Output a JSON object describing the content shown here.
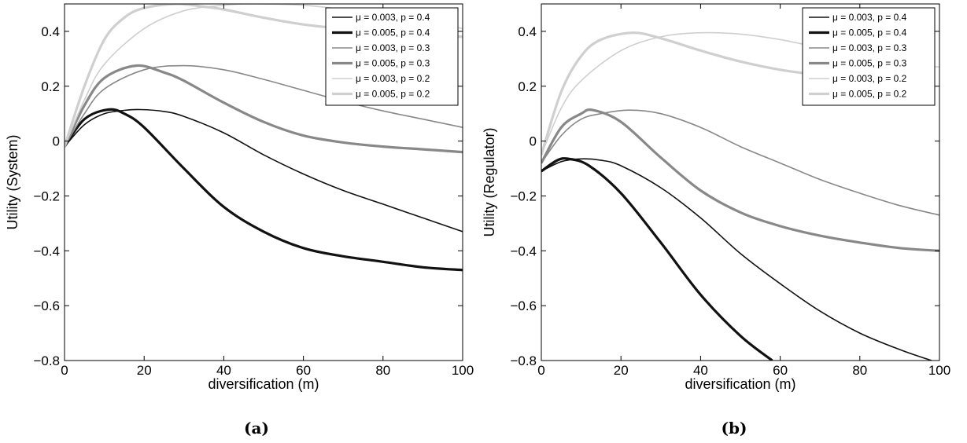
{
  "chart_data": [
    {
      "type": "line",
      "caption": "(a)",
      "xlabel": "diversification (m)",
      "ylabel": "Utility (System)",
      "xlim": [
        0,
        100
      ],
      "ylim": [
        -0.8,
        0.5
      ],
      "xticks": [
        "0",
        "20",
        "40",
        "60",
        "80",
        "100"
      ],
      "yticks": [
        "0.4",
        "0.2",
        "0",
        "−0.2",
        "−0.4",
        "−0.6",
        "−0.8"
      ],
      "legend_position": "top-right",
      "series": [
        {
          "name": "μ = 0.003, p = 0.4",
          "color": "#111111",
          "width": 1.6,
          "x": [
            0,
            5,
            10,
            15,
            19,
            25,
            30,
            40,
            50,
            60,
            70,
            80,
            90,
            100
          ],
          "y": [
            -0.02,
            0.06,
            0.1,
            0.112,
            0.115,
            0.108,
            0.09,
            0.03,
            -0.05,
            -0.12,
            -0.18,
            -0.23,
            -0.28,
            -0.33
          ]
        },
        {
          "name": "μ = 0.005, p = 0.4",
          "color": "#111111",
          "width": 3.2,
          "x": [
            0,
            5,
            11,
            15,
            20,
            30,
            40,
            50,
            60,
            70,
            80,
            90,
            100
          ],
          "y": [
            -0.02,
            0.08,
            0.115,
            0.1,
            0.05,
            -0.1,
            -0.24,
            -0.33,
            -0.39,
            -0.42,
            -0.44,
            -0.46,
            -0.47
          ]
        },
        {
          "name": "μ = 0.003, p = 0.3",
          "color": "#888888",
          "width": 1.6,
          "x": [
            0,
            5,
            10,
            20,
            30,
            40,
            50,
            60,
            70,
            80,
            90,
            100
          ],
          "y": [
            -0.02,
            0.1,
            0.19,
            0.26,
            0.275,
            0.26,
            0.225,
            0.185,
            0.145,
            0.11,
            0.08,
            0.05
          ]
        },
        {
          "name": "μ = 0.005, p = 0.3",
          "color": "#888888",
          "width": 3.2,
          "x": [
            0,
            5,
            10,
            18,
            25,
            30,
            40,
            50,
            60,
            70,
            80,
            90,
            100
          ],
          "y": [
            -0.02,
            0.13,
            0.23,
            0.275,
            0.25,
            0.22,
            0.14,
            0.07,
            0.02,
            -0.005,
            -0.02,
            -0.03,
            -0.04
          ]
        },
        {
          "name": "μ = 0.003, p = 0.2",
          "color": "#cfcfcf",
          "width": 1.6,
          "x": [
            0,
            5,
            10,
            20,
            30,
            40,
            47,
            60,
            70,
            80,
            90,
            100
          ],
          "y": [
            -0.02,
            0.15,
            0.28,
            0.41,
            0.475,
            0.495,
            0.5,
            0.495,
            0.48,
            0.465,
            0.44,
            0.41
          ]
        },
        {
          "name": "μ = 0.005, p = 0.2",
          "color": "#cfcfcf",
          "width": 3.2,
          "x": [
            0,
            5,
            10,
            15,
            20,
            28,
            35,
            40,
            50,
            60,
            70,
            80,
            90,
            100
          ],
          "y": [
            -0.02,
            0.2,
            0.37,
            0.45,
            0.485,
            0.5,
            0.49,
            0.48,
            0.45,
            0.425,
            0.41,
            0.4,
            0.39,
            0.38
          ]
        }
      ]
    },
    {
      "type": "line",
      "caption": "(b)",
      "xlabel": "diversification (m)",
      "ylabel": "Utility (Regulator)",
      "xlim": [
        0,
        100
      ],
      "ylim": [
        -0.8,
        0.5
      ],
      "xticks": [
        "0",
        "20",
        "40",
        "60",
        "80",
        "100"
      ],
      "yticks": [
        "0.4",
        "0.2",
        "0",
        "−0.2",
        "−0.4",
        "−0.6",
        "−0.8"
      ],
      "legend_position": "top-right",
      "series": [
        {
          "name": "μ = 0.003, p = 0.4",
          "color": "#111111",
          "width": 1.6,
          "x": [
            0,
            5,
            10,
            15,
            20,
            30,
            40,
            50,
            60,
            70,
            80,
            90,
            98
          ],
          "y": [
            -0.11,
            -0.075,
            -0.065,
            -0.07,
            -0.09,
            -0.17,
            -0.28,
            -0.41,
            -0.52,
            -0.62,
            -0.7,
            -0.76,
            -0.8
          ]
        },
        {
          "name": "μ = 0.005, p = 0.4",
          "color": "#111111",
          "width": 3.2,
          "x": [
            0,
            4,
            7,
            12,
            20,
            30,
            40,
            50,
            58
          ],
          "y": [
            -0.11,
            -0.07,
            -0.065,
            -0.09,
            -0.19,
            -0.37,
            -0.56,
            -0.71,
            -0.8
          ]
        },
        {
          "name": "μ = 0.003, p = 0.3",
          "color": "#888888",
          "width": 1.6,
          "x": [
            0,
            5,
            10,
            15,
            22,
            30,
            40,
            50,
            60,
            70,
            80,
            90,
            100
          ],
          "y": [
            -0.08,
            0.02,
            0.08,
            0.1,
            0.113,
            0.1,
            0.05,
            -0.02,
            -0.08,
            -0.14,
            -0.19,
            -0.235,
            -0.27
          ]
        },
        {
          "name": "μ = 0.005, p = 0.3",
          "color": "#888888",
          "width": 3.2,
          "x": [
            0,
            5,
            10,
            13,
            20,
            30,
            40,
            50,
            60,
            70,
            80,
            90,
            100
          ],
          "y": [
            -0.08,
            0.05,
            0.1,
            0.113,
            0.07,
            -0.06,
            -0.18,
            -0.26,
            -0.31,
            -0.345,
            -0.37,
            -0.39,
            -0.4
          ]
        },
        {
          "name": "μ = 0.003, p = 0.2",
          "color": "#cfcfcf",
          "width": 1.6,
          "x": [
            0,
            5,
            10,
            20,
            30,
            40,
            50,
            60,
            70,
            80,
            90,
            100
          ],
          "y": [
            -0.05,
            0.12,
            0.22,
            0.33,
            0.38,
            0.395,
            0.39,
            0.37,
            0.34,
            0.31,
            0.285,
            0.27
          ]
        },
        {
          "name": "μ = 0.005, p = 0.2",
          "color": "#cfcfcf",
          "width": 3.2,
          "x": [
            0,
            5,
            10,
            15,
            23,
            30,
            40,
            50,
            60,
            70,
            80
          ],
          "y": [
            -0.05,
            0.18,
            0.31,
            0.37,
            0.395,
            0.375,
            0.33,
            0.29,
            0.26,
            0.24,
            0.22
          ]
        }
      ]
    }
  ]
}
